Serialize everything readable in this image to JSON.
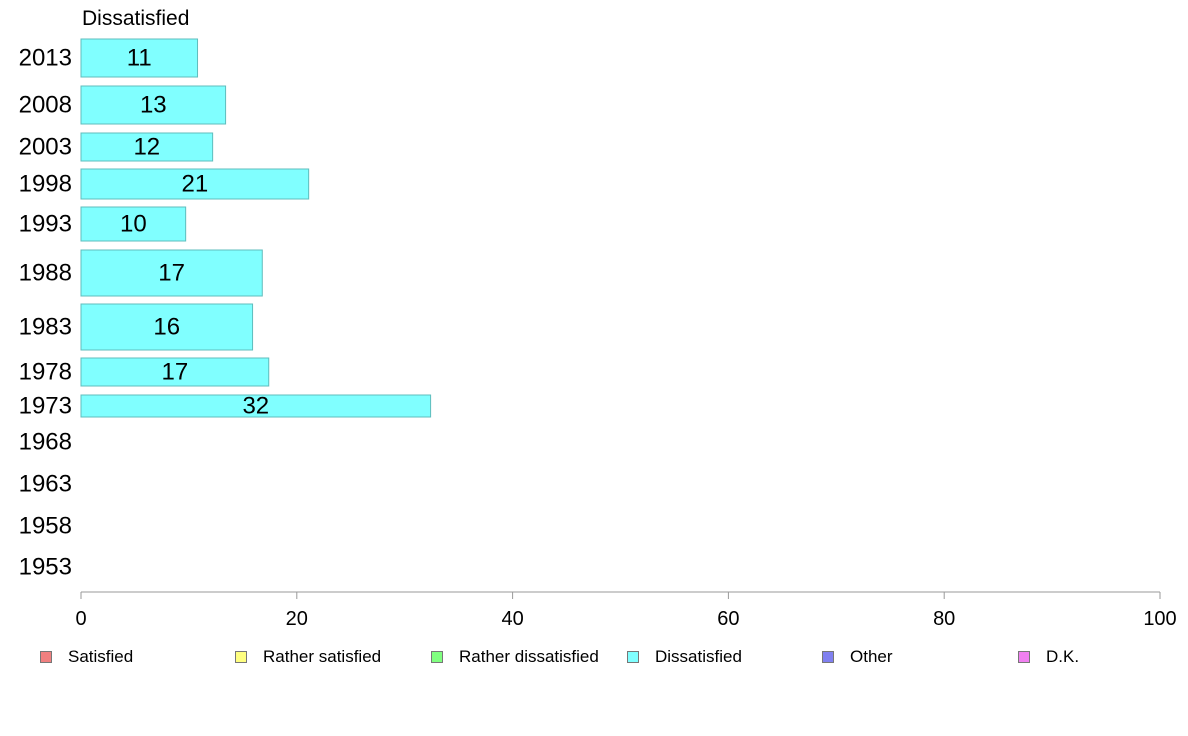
{
  "chart_data": {
    "type": "bar",
    "orientation": "horizontal",
    "title": "Dissatisfied",
    "categories": [
      "2013",
      "2008",
      "2003",
      "1998",
      "1993",
      "1988",
      "1983",
      "1978",
      "1973",
      "1968",
      "1963",
      "1958",
      "1953"
    ],
    "series": [
      {
        "name": "Dissatisfied",
        "values": [
          10.8,
          13.4,
          12.2,
          21.1,
          9.7,
          16.8,
          15.9,
          17.4,
          32.4,
          null,
          null,
          null,
          null
        ],
        "labels": [
          "11",
          "13",
          "12",
          "21",
          "10",
          "17",
          "16",
          "17",
          "32",
          "",
          "",
          "",
          ""
        ]
      }
    ],
    "xlim": [
      0,
      100
    ],
    "xticks": [
      "0",
      "20",
      "40",
      "60",
      "80",
      "100"
    ],
    "grid": false,
    "legend_position": "bottom",
    "bar_color": "#80ffff"
  },
  "legend": [
    {
      "label": "Satisfied",
      "color": "#f08080"
    },
    {
      "label": "Rather satisfied",
      "color": "#ffff80"
    },
    {
      "label": "Rather dissatisfied",
      "color": "#80ff80"
    },
    {
      "label": "Dissatisfied",
      "color": "#80ffff"
    },
    {
      "label": "Other",
      "color": "#8080f0"
    },
    {
      "label": "D.K.",
      "color": "#f080f0"
    }
  ]
}
